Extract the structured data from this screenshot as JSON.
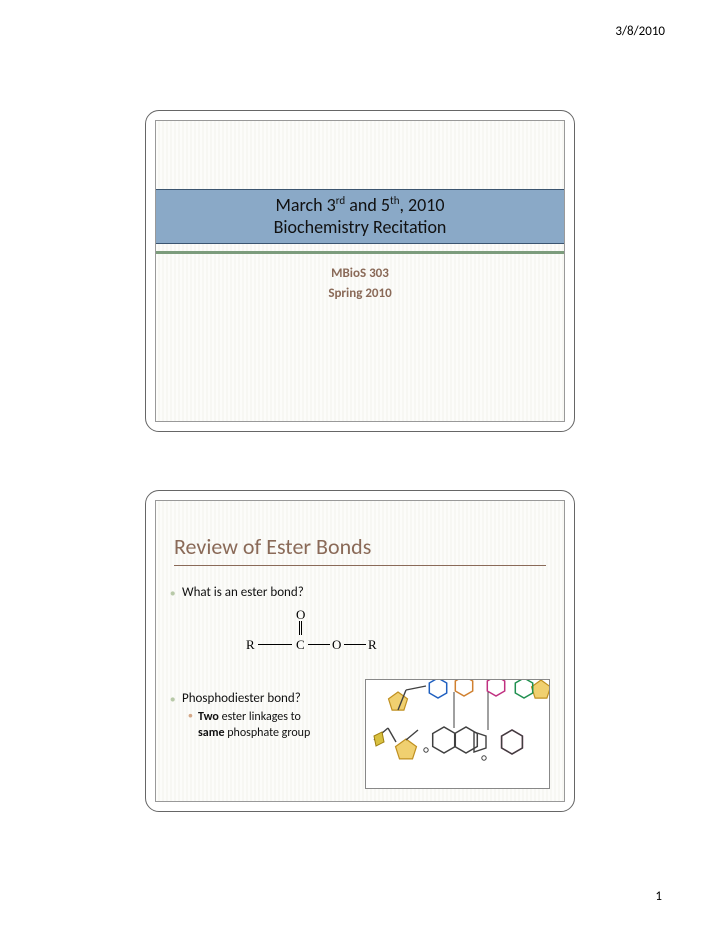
{
  "header": {
    "date": "3/8/2010",
    "page_number": "1"
  },
  "slide1": {
    "title_line1_pre": "March 3",
    "title_line1_sup1": "rd",
    "title_line1_mid": " and 5",
    "title_line1_sup2": "th",
    "title_line1_post": ", 2010",
    "title_line2": "Biochemistry Recitation",
    "course": "MBioS 303",
    "term": "Spring 2010",
    "title_band_color": "#8aa9c7",
    "rule_color": "#7c9c7c",
    "text_color": "#8a6a58"
  },
  "slide2": {
    "title": "Review of Ester Bonds",
    "title_color": "#8a6a58",
    "bullet_what": "What is an ester bond?",
    "bullet_phos": "Phosphodiester bond?",
    "bullet_two_bold1": "Two",
    "bullet_two_mid": " ester linkages to ",
    "bullet_two_bold2": "same",
    "bullet_two_end": " phosphate group",
    "ester": {
      "R1": "R",
      "C": "C",
      "O_top": "O",
      "O_mid": "O",
      "R2": "R"
    },
    "mol_colors": {
      "sugar_fill": "#f0d070",
      "sugar_stroke": "#c09020",
      "base1_stroke": "#2060c0",
      "base2_stroke": "#c03080",
      "base3_stroke": "#209050",
      "base4_stroke": "#d08030",
      "phosphate": "#d8c040",
      "bond": "#404040"
    }
  }
}
